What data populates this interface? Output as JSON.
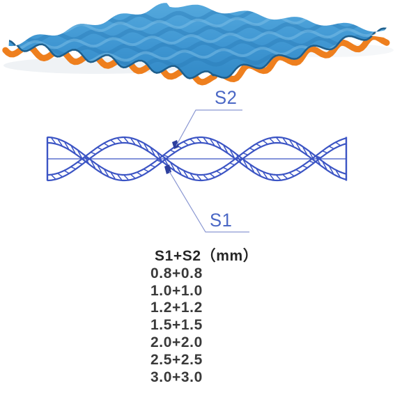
{
  "figure": {
    "labels": {
      "s2": "S2",
      "s1": "S1"
    },
    "table": {
      "header": "S1+S2（mm）",
      "rows": [
        "0.8+0.8",
        "1.0+1.0",
        "1.2+1.2",
        "1.5+1.5",
        "2.0+2.0",
        "2.5+2.5",
        "3.0+3.0"
      ]
    },
    "colors": {
      "sheet_blue": "#3f96d2",
      "sheet_blue_light": "#5cabdf",
      "sheet_blue_shade": "#2a7db8",
      "sheet_edge_navy": "#1d5c88",
      "strand_orange": "#ee7f1e",
      "diagram_blue": "#3b54c4",
      "leader_blue": "#8a97d2",
      "wedge_blue": "#2d3f9e",
      "label_blue": "#4a67c5",
      "table_text": "#3a3a3a",
      "background": "#ffffff"
    }
  }
}
